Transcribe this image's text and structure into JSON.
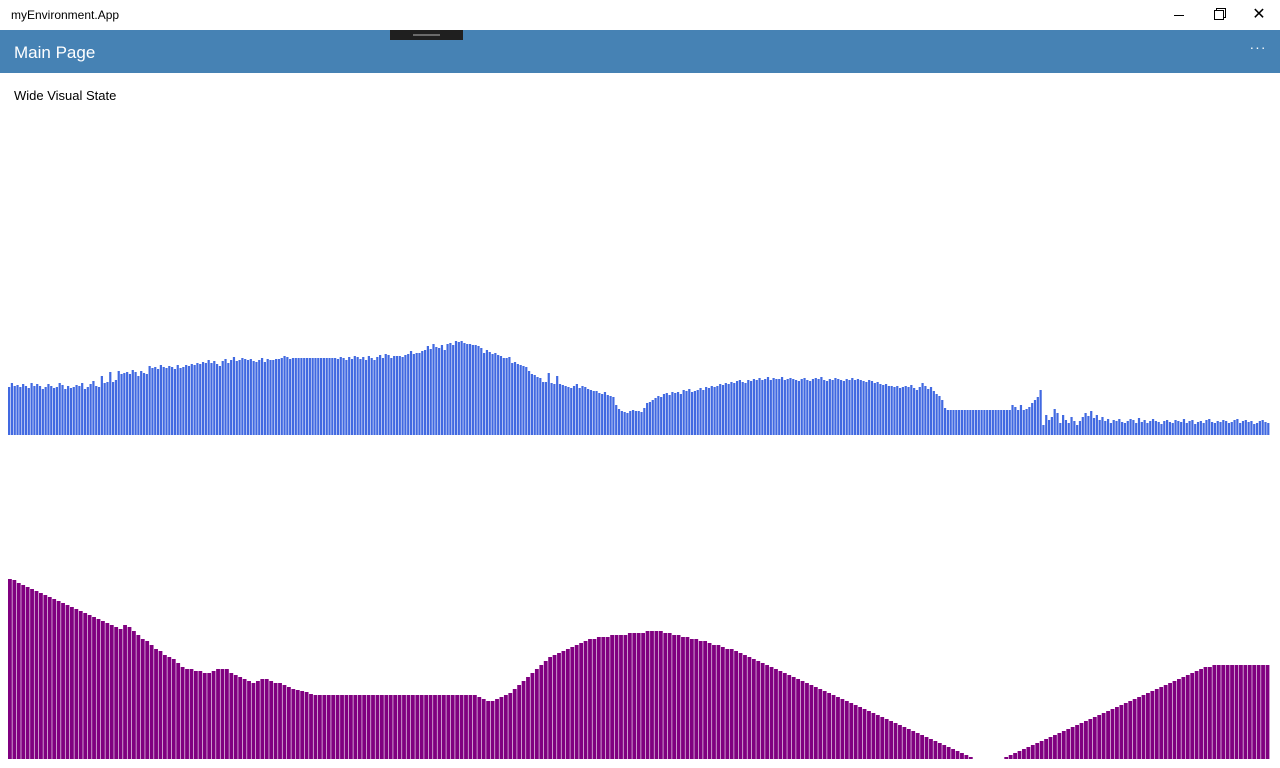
{
  "window": {
    "title": "myEnvironment.App",
    "minimize_icon": "minimize-icon",
    "maximize_icon": "restore-icon",
    "close_icon": "close-icon"
  },
  "header": {
    "title": "Main Page",
    "more_label": "···",
    "background": "#4682b4"
  },
  "main": {
    "state_label": "Wide Visual State"
  },
  "chart_data": [
    {
      "type": "bar",
      "color": "#4169e1",
      "ylim": [
        0,
        200
      ],
      "values": [
        48,
        52,
        49,
        50,
        48,
        51,
        49,
        47,
        52,
        49,
        51,
        49,
        46,
        48,
        51,
        49,
        47,
        48,
        52,
        50,
        46,
        49,
        47,
        48,
        50,
        49,
        52,
        46,
        48,
        51,
        54,
        49,
        48,
        59,
        52,
        53,
        63,
        53,
        55,
        64,
        61,
        62,
        63,
        61,
        65,
        63,
        59,
        64,
        62,
        61,
        69,
        67,
        68,
        66,
        70,
        68,
        67,
        69,
        68,
        66,
        70,
        67,
        68,
        70,
        69,
        71,
        70,
        72,
        71,
        73,
        72,
        75,
        72,
        74,
        71,
        69,
        74,
        76,
        72,
        75,
        78,
        74,
        75,
        77,
        76,
        75,
        76,
        74,
        73,
        75,
        77,
        73,
        76,
        75,
        75,
        76,
        76,
        77,
        79,
        78,
        76,
        77,
        77,
        77,
        77,
        77,
        77,
        77,
        77,
        77,
        77,
        77,
        77,
        77,
        77,
        77,
        77,
        76,
        78,
        77,
        75,
        78,
        76,
        79,
        78,
        76,
        78,
        75,
        79,
        77,
        75,
        78,
        80,
        77,
        81,
        80,
        77,
        79,
        79,
        79,
        78,
        80,
        81,
        84,
        81,
        82,
        82,
        84,
        85,
        89,
        86,
        91,
        88,
        87,
        90,
        85,
        91,
        92,
        90,
        94,
        93,
        94,
        92,
        91,
        91,
        90,
        90,
        89,
        87,
        82,
        85,
        83,
        81,
        82,
        80,
        79,
        77,
        77,
        78,
        72,
        73,
        71,
        70,
        69,
        68,
        64,
        61,
        60,
        58,
        57,
        53,
        53,
        62,
        52,
        51,
        59,
        51,
        50,
        49,
        48,
        47,
        49,
        51,
        47,
        49,
        48,
        46,
        45,
        44,
        44,
        42,
        41,
        43,
        40,
        39,
        38,
        30,
        26,
        24,
        23,
        22,
        24,
        25,
        24,
        24,
        23,
        27,
        32,
        33,
        35,
        37,
        39,
        38,
        41,
        42,
        40,
        43,
        42,
        43,
        41,
        45,
        44,
        46,
        43,
        44,
        45,
        47,
        45,
        48,
        47,
        49,
        48,
        49,
        51,
        50,
        52,
        51,
        53,
        52,
        54,
        55,
        53,
        52,
        55,
        54,
        56,
        55,
        57,
        55,
        56,
        58,
        55,
        57,
        56,
        56,
        58,
        55,
        56,
        57,
        56,
        55,
        54,
        56,
        57,
        55,
        54,
        56,
        57,
        56,
        58,
        55,
        54,
        56,
        55,
        57,
        56,
        55,
        54,
        56,
        55,
        57,
        55,
        56,
        55,
        54,
        53,
        55,
        54,
        52,
        53,
        51,
        50,
        51,
        49,
        49,
        48,
        49,
        47,
        48,
        49,
        48,
        50,
        47,
        45,
        48,
        52,
        49,
        46,
        48,
        44,
        41,
        39,
        35,
        27,
        25,
        25,
        25,
        25,
        25,
        25,
        25,
        25,
        25,
        25,
        25,
        25,
        25,
        25,
        25,
        25,
        25,
        25,
        25,
        25,
        25,
        25,
        25,
        30,
        28,
        25,
        30,
        25,
        26,
        28,
        32,
        35,
        38,
        45,
        10,
        20,
        15,
        18,
        26,
        22,
        12,
        20,
        15,
        12,
        18,
        14,
        10,
        14,
        18,
        22,
        19,
        24,
        17,
        20,
        15,
        18,
        14,
        16,
        12,
        15,
        14,
        16,
        13,
        12,
        14,
        16,
        15,
        12,
        17,
        13,
        15,
        12,
        14,
        16,
        14,
        13,
        11,
        14,
        15,
        13,
        12,
        15,
        14,
        13,
        16,
        12,
        14,
        15,
        11,
        13,
        14,
        12,
        15,
        16,
        13,
        12,
        14,
        13,
        15,
        14,
        12,
        13,
        15,
        16,
        12,
        14,
        15,
        13,
        14,
        11,
        12,
        14,
        15,
        13,
        12
      ]
    },
    {
      "type": "bar",
      "color": "#800080",
      "ylim": [
        0,
        200
      ],
      "values": [
        180,
        179,
        176,
        174,
        172,
        170,
        168,
        166,
        164,
        162,
        160,
        158,
        156,
        154,
        152,
        150,
        148,
        146,
        144,
        142,
        140,
        138,
        136,
        134,
        132,
        130,
        134,
        132,
        128,
        124,
        120,
        118,
        114,
        110,
        108,
        104,
        102,
        100,
        96,
        92,
        90,
        90,
        88,
        88,
        86,
        86,
        88,
        90,
        90,
        90,
        86,
        84,
        82,
        80,
        78,
        76,
        78,
        80,
        80,
        78,
        76,
        76,
        74,
        72,
        70,
        69,
        68,
        67,
        65,
        64,
        64,
        64,
        64,
        64,
        64,
        64,
        64,
        64,
        64,
        64,
        64,
        64,
        64,
        64,
        64,
        64,
        64,
        64,
        64,
        64,
        64,
        64,
        64,
        64,
        64,
        64,
        64,
        64,
        64,
        64,
        64,
        64,
        64,
        64,
        64,
        64,
        62,
        60,
        58,
        58,
        60,
        62,
        64,
        66,
        70,
        74,
        78,
        82,
        86,
        90,
        94,
        98,
        102,
        104,
        106,
        108,
        110,
        112,
        114,
        116,
        118,
        120,
        120,
        122,
        122,
        122,
        124,
        124,
        124,
        124,
        126,
        126,
        126,
        126,
        128,
        128,
        128,
        128,
        126,
        126,
        124,
        124,
        122,
        122,
        120,
        120,
        118,
        118,
        116,
        114,
        114,
        112,
        110,
        110,
        108,
        106,
        104,
        102,
        100,
        98,
        96,
        94,
        92,
        90,
        88,
        86,
        84,
        82,
        80,
        78,
        76,
        74,
        72,
        70,
        68,
        66,
        64,
        62,
        60,
        58,
        56,
        54,
        52,
        50,
        48,
        46,
        44,
        42,
        40,
        38,
        36,
        34,
        32,
        30,
        28,
        26,
        24,
        22,
        20,
        18,
        16,
        14,
        12,
        10,
        8,
        6,
        4,
        2,
        0,
        0,
        0,
        0,
        0,
        0,
        0,
        2,
        4,
        6,
        8,
        10,
        12,
        14,
        16,
        18,
        20,
        22,
        24,
        26,
        28,
        30,
        32,
        34,
        36,
        38,
        40,
        42,
        44,
        46,
        48,
        50,
        52,
        54,
        56,
        58,
        60,
        62,
        64,
        66,
        68,
        70,
        72,
        74,
        76,
        78,
        80,
        82,
        84,
        86,
        88,
        90,
        92,
        92,
        94,
        94,
        94,
        94,
        94,
        94,
        94,
        94,
        94,
        94,
        94,
        94,
        94
      ]
    }
  ]
}
